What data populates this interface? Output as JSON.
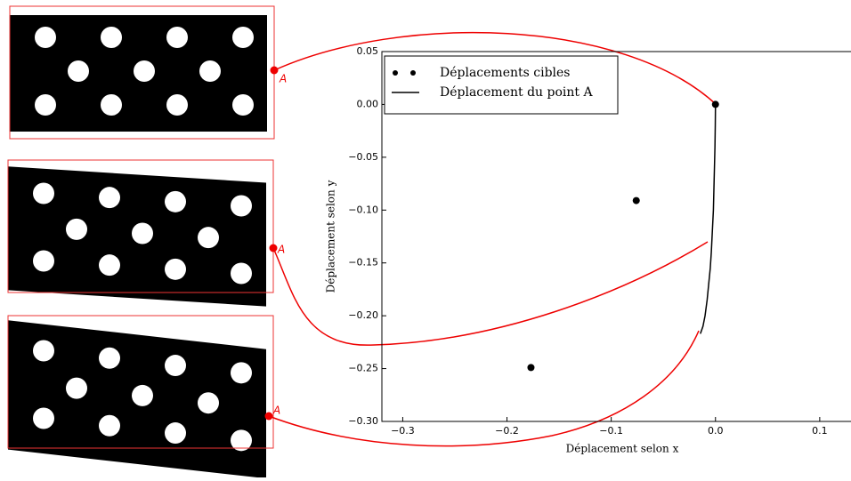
{
  "chart_data": {
    "type": "scatter",
    "xlabel": "Déplacement selon x",
    "ylabel": "Déplacement selon y",
    "xlim": [
      -0.32,
      0.13
    ],
    "ylim": [
      -0.3,
      0.05
    ],
    "xticks": [
      {
        "value": -0.3,
        "label": "−0.3"
      },
      {
        "value": -0.2,
        "label": "−0.2"
      },
      {
        "value": -0.1,
        "label": "−0.1"
      },
      {
        "value": 0,
        "label": "0.0"
      },
      0.1
    ],
    "yticks": [
      {
        "value": -0.3,
        "label": "−0.30"
      },
      {
        "value": -0.25,
        "label": "−0.25"
      },
      {
        "value": -0.2,
        "label": "−0.20"
      },
      {
        "value": -0.15,
        "label": "−0.15"
      },
      {
        "value": -0.1,
        "label": "−0.10"
      },
      {
        "value": -0.05,
        "label": "−0.05"
      },
      {
        "value": 0,
        "label": "0.00"
      },
      0.05
    ],
    "legend": "upper left",
    "series": [
      {
        "name": "Déplacements cibles",
        "style": "markers",
        "color": "#000000",
        "x": [
          0,
          -0.076,
          -0.177
        ],
        "values": [
          0,
          -0.091,
          -0.249
        ]
      },
      {
        "name": "Déplacement du point A",
        "style": "line",
        "color": "#000000",
        "x": [
          0,
          -0.0002,
          -0.0005,
          -0.001,
          -0.0015,
          -0.002,
          -0.003,
          -0.004,
          -0.005,
          -0.0065,
          -0.008,
          -0.01,
          -0.012,
          -0.0145
        ],
        "values": [
          0,
          -0.02,
          -0.04,
          -0.06,
          -0.08,
          -0.1,
          -0.12,
          -0.14,
          -0.155,
          -0.17,
          -0.185,
          -0.2,
          -0.21,
          -0.217
        ]
      }
    ],
    "annotations": [
      "A",
      "A",
      "A"
    ]
  }
}
